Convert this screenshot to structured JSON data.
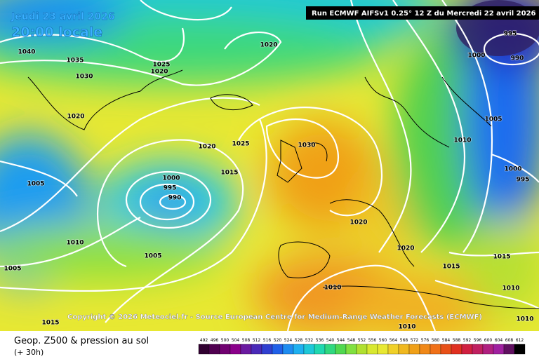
{
  "header": {
    "date": "Jeudi 23 avril 2026",
    "time": "20:00 locale",
    "run": "Run ECMWF AIFSv1 0.25° 12 Z du Mercredi 22 avril 2026"
  },
  "copyright": "Copyright © 2026 Meteociel.fr - Source European Centre for Medium-Range Weather Forecasts (ECMWF)",
  "legend": {
    "title": "Geop. Z500 & pression au sol",
    "subtitle": "(+ 30h)",
    "scale": [
      "492",
      "496",
      "500",
      "504",
      "508",
      "512",
      "516",
      "520",
      "524",
      "528",
      "532",
      "536",
      "540",
      "544",
      "548",
      "552",
      "556",
      "560",
      "564",
      "568",
      "572",
      "576",
      "580",
      "584",
      "588",
      "592",
      "596",
      "600",
      "604",
      "608",
      "612"
    ]
  },
  "isobar_labels": [
    "1040",
    "1035",
    "1030",
    "1020",
    "1025",
    "1020",
    "1020",
    "1020",
    "1025",
    "1030",
    "1015",
    "1000",
    "995",
    "990",
    "1005",
    "1010",
    "1005",
    "1005",
    "1015",
    "1010",
    "1010",
    "1020",
    "1020",
    "1015",
    "1015",
    "1010",
    "1010",
    "1010",
    "1005",
    "1000",
    "995",
    "1000",
    "995",
    "990"
  ]
}
